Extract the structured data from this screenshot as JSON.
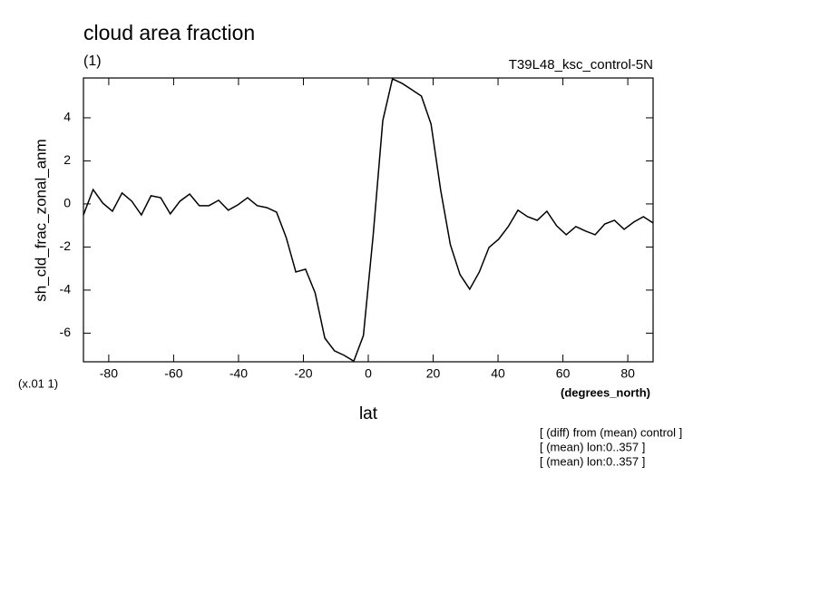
{
  "chart_data": {
    "type": "line",
    "title": "cloud area fraction",
    "subtitle": "(1)",
    "run_label": "T39L48_ksc_control-5N",
    "y_label": "sh_cld_frac_zonal_anm",
    "y_scale_label": "(x.01 1)",
    "x_units_label": "(degrees_north)",
    "x_label": "lat",
    "annotations": [
      "[ (diff) from (mean) control ]",
      "[ (mean) lon:0..357 ]",
      "[ (mean) lon:0..357 ]"
    ],
    "xlim": [
      -87.8,
      87.8
    ],
    "ylim": [
      -7.33,
      5.85
    ],
    "xticks": [
      -80,
      -60,
      -40,
      -20,
      0,
      20,
      40,
      60,
      80
    ],
    "yticks": [
      -6,
      -4,
      -2,
      0,
      2,
      4
    ],
    "color": "#000000",
    "x": [
      -87.8,
      -84.82,
      -81.85,
      -78.87,
      -75.9,
      -72.92,
      -69.94,
      -66.97,
      -63.99,
      -61.02,
      -58.04,
      -55.06,
      -52.09,
      -49.11,
      -46.14,
      -43.16,
      -40.18,
      -37.21,
      -34.23,
      -31.26,
      -28.28,
      -25.3,
      -22.33,
      -19.35,
      -16.38,
      -13.4,
      -10.42,
      -7.45,
      -4.47,
      -1.5,
      1.5,
      4.47,
      7.45,
      10.42,
      13.4,
      16.38,
      19.35,
      22.33,
      25.3,
      28.28,
      31.26,
      34.23,
      37.21,
      40.18,
      43.16,
      46.14,
      49.11,
      52.09,
      55.06,
      58.04,
      61.02,
      63.99,
      66.97,
      69.94,
      72.92,
      75.9,
      78.87,
      81.85,
      84.82,
      87.8
    ],
    "values": [
      -0.51,
      0.67,
      0.04,
      -0.34,
      0.51,
      0.13,
      -0.51,
      0.38,
      0.29,
      -0.46,
      0.13,
      0.46,
      -0.08,
      -0.08,
      0.17,
      -0.29,
      -0.04,
      0.29,
      -0.08,
      -0.17,
      -0.38,
      -1.56,
      -3.16,
      -3.03,
      -4.13,
      -6.23,
      -6.82,
      -7.03,
      -7.3,
      -6.11,
      -1.47,
      3.87,
      5.81,
      5.6,
      5.31,
      5.01,
      3.71,
      0.63,
      -1.89,
      -3.28,
      -3.96,
      -3.16,
      -2.02,
      -1.64,
      -1.05,
      -0.29,
      -0.59,
      -0.76,
      -0.34,
      -1.01,
      -1.43,
      -1.05,
      -1.26,
      -1.43,
      -0.93,
      -0.76,
      -1.18,
      -0.84,
      -0.59,
      -0.88
    ]
  }
}
